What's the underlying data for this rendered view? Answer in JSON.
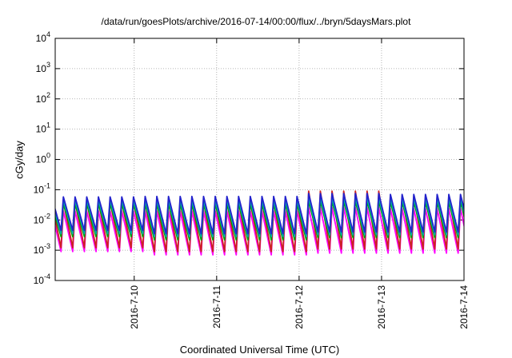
{
  "chart_data": {
    "type": "line",
    "title": "/data/run/goesPlots/archive/2016-07-14/00:00/flux/../bryn/5daysMars.plot",
    "xlabel": "Coordinated Universal Time (UTC)",
    "ylabel": "cGy/day",
    "yscale": "log",
    "ylim": [
      0.0001,
      10000
    ],
    "y_ticks": [
      {
        "base": "10",
        "exp": "-4",
        "value": 0.0001
      },
      {
        "base": "10",
        "exp": "-3",
        "value": 0.001
      },
      {
        "base": "10",
        "exp": "-2",
        "value": 0.01
      },
      {
        "base": "10",
        "exp": "-1",
        "value": 0.1
      },
      {
        "base": "10",
        "exp": "0",
        "value": 1
      },
      {
        "base": "10",
        "exp": "1",
        "value": 10
      },
      {
        "base": "10",
        "exp": "2",
        "value": 100
      },
      {
        "base": "10",
        "exp": "3",
        "value": 1000
      },
      {
        "base": "10",
        "exp": "4",
        "value": 10000
      }
    ],
    "xlim": [
      "2016-07-09T01:00",
      "2016-07-14T00:00"
    ],
    "x_ticks": [
      "2016-7-10",
      "2016-7-11",
      "2016-7-12",
      "2016-7-13",
      "2016-7-14"
    ],
    "grid": true,
    "cycle_hours": 3.4,
    "series": [
      {
        "color": "#2222cc",
        "peak_day": [
          0.058,
          0.06,
          0.06,
          0.075,
          0.07,
          0.075
        ],
        "trough_day": [
          0.0045,
          0.0035,
          0.0035,
          0.004,
          0.004,
          0.0045
        ]
      },
      {
        "color": "#00aaaa",
        "peak_day": [
          0.045,
          0.045,
          0.045,
          0.055,
          0.052,
          0.058
        ],
        "trough_day": [
          0.0035,
          0.0028,
          0.0028,
          0.0032,
          0.0032,
          0.0036
        ]
      },
      {
        "color": "#00a000",
        "peak_day": [
          0.035,
          0.035,
          0.035,
          0.042,
          0.04,
          0.045
        ],
        "trough_day": [
          0.0028,
          0.0022,
          0.0022,
          0.0026,
          0.0026,
          0.003
        ]
      },
      {
        "color": "#cc2222",
        "peak_day": [
          0.04,
          0.04,
          0.04,
          0.09,
          0.06,
          0.08
        ],
        "trough_day": [
          0.0012,
          0.0009,
          0.0009,
          0.0011,
          0.0011,
          0.0013
        ]
      },
      {
        "color": "#ff00ff",
        "peak_day": [
          0.02,
          0.02,
          0.02,
          0.026,
          0.024,
          0.028
        ],
        "trough_day": [
          0.0009,
          0.0007,
          0.0007,
          0.0008,
          0.0008,
          0.0009
        ]
      }
    ]
  }
}
